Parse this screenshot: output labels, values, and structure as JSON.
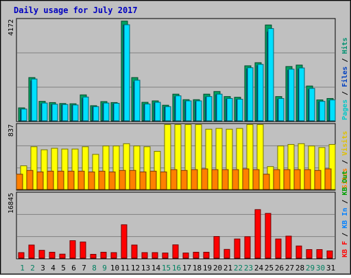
{
  "chart_data": {
    "type": "bar",
    "title": "Daily usage for July 2017",
    "days": [
      "1",
      "2",
      "3",
      "4",
      "5",
      "6",
      "7",
      "8",
      "9",
      "10",
      "11",
      "12",
      "13",
      "14",
      "15",
      "16",
      "17",
      "18",
      "19",
      "20",
      "21",
      "22",
      "23",
      "24",
      "25",
      "26",
      "27",
      "28",
      "29",
      "30",
      "31"
    ],
    "weekend_days": [
      "1",
      "2",
      "8",
      "9",
      "15",
      "16",
      "22",
      "23",
      "29",
      "30"
    ],
    "panels": [
      {
        "id": "hits",
        "ymax_label": "4172",
        "ymax": 4172,
        "right_labels": [
          {
            "text": "Pages",
            "color": "#00c8c8"
          },
          {
            "text": " / ",
            "color": "#000000"
          },
          {
            "text": "Files",
            "color": "#0040c0"
          },
          {
            "text": " / ",
            "color": "#000000"
          },
          {
            "text": "Hits",
            "color": "#009070"
          }
        ],
        "series": [
          {
            "key": "hits",
            "color": "#00a060",
            "values": [
              540,
              1800,
              810,
              760,
              720,
              710,
              1080,
              630,
              800,
              760,
              4150,
              1800,
              770,
              830,
              650,
              1110,
              880,
              880,
              1110,
              1220,
              1010,
              980,
              2290,
              2420,
              3990,
              1010,
              2260,
              2320,
              1450,
              870,
              930
            ]
          },
          {
            "key": "files",
            "color": "#0050d0",
            "values": [
              480,
              1660,
              700,
              670,
              660,
              650,
              930,
              580,
              720,
              700,
              3990,
              1620,
              690,
              750,
              580,
              1000,
              800,
              800,
              980,
              1080,
              900,
              880,
              2160,
              2290,
              3700,
              890,
              2100,
              2150,
              1300,
              790,
              830
            ]
          },
          {
            "key": "pages",
            "color": "#00e0ff",
            "values": [
              490,
              1740,
              740,
              690,
              680,
              660,
              990,
              590,
              740,
              730,
              4000,
              1690,
              700,
              770,
              590,
              1040,
              830,
              830,
              1010,
              1110,
              930,
              900,
              2210,
              2350,
              3840,
              930,
              2150,
              2200,
              1350,
              810,
              870
            ]
          }
        ]
      },
      {
        "id": "visits",
        "ymax_label": "837",
        "ymax": 837,
        "right_labels": [
          {
            "text": "Sites",
            "color": "#ff8000"
          },
          {
            "text": " / ",
            "color": "#000000"
          },
          {
            "text": "Visits",
            "color": "#e0c000"
          }
        ],
        "series": [
          {
            "key": "visits",
            "color": "#ffff00",
            "values": [
              310,
              560,
              520,
              540,
              530,
              530,
              560,
              460,
              570,
              570,
              600,
              570,
              560,
              500,
              850,
              850,
              850,
              850,
              790,
              800,
              790,
              800,
              850,
              850,
              300,
              570,
              590,
              600,
              570,
              550,
              590
            ]
          },
          {
            "key": "sites",
            "color": "#ff8000",
            "values": [
              200,
              250,
              230,
              240,
              240,
              240,
              240,
              230,
              240,
              230,
              250,
              250,
              230,
              240,
              230,
              260,
              250,
              260,
              270,
              260,
              260,
              260,
              270,
              260,
              200,
              260,
              260,
              260,
              260,
              250,
              270
            ]
          }
        ]
      },
      {
        "id": "kbytes",
        "ymax_label": "16845",
        "ymax": 16845,
        "right_labels": [
          {
            "text": "KB F",
            "color": "#ff0000"
          },
          {
            "text": " / ",
            "color": "#000000"
          },
          {
            "text": "KB In",
            "color": "#0080ff"
          },
          {
            "text": " / ",
            "color": "#000000"
          },
          {
            "text": "KB Out",
            "color": "#00a000"
          }
        ],
        "series": [
          {
            "key": "kbf",
            "color": "#ff0000",
            "values": [
              1450,
              3450,
              2050,
              1550,
              1050,
              4600,
              4250,
              1000,
              1550,
              1450,
              8800,
              3450,
              1450,
              1450,
              1350,
              3500,
              1350,
              1550,
              1550,
              5700,
              2300,
              5050,
              5650,
              12800,
              11800,
              5050,
              5800,
              3200,
              2250,
              2250,
              1900
            ]
          }
        ]
      }
    ]
  }
}
